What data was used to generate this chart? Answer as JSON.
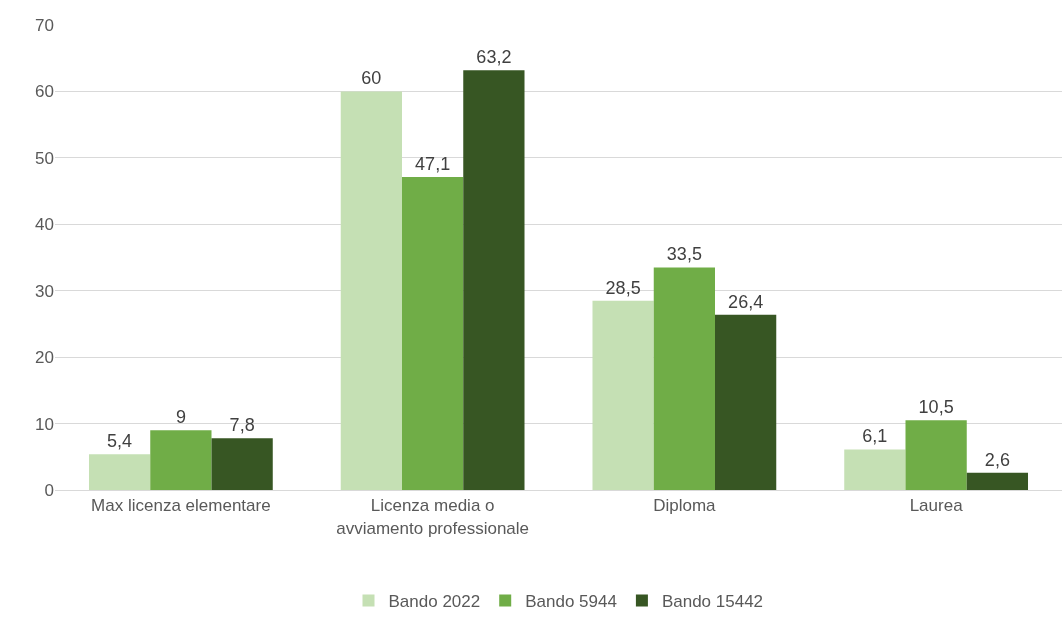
{
  "chart_data": {
    "type": "bar",
    "categories": [
      "Max licenza elementare",
      "Licenza media o\navviamento professionale",
      "Diploma",
      "Laurea"
    ],
    "series": [
      {
        "name": "Bando 2022",
        "color": "#c5e0b4",
        "values": [
          5.4,
          60,
          28.5,
          6.1
        ],
        "value_labels": [
          "5,4",
          "60",
          "28,5",
          "6,1"
        ]
      },
      {
        "name": "Bando 5944",
        "color": "#70ad47",
        "values": [
          9,
          47.1,
          33.5,
          10.5
        ],
        "value_labels": [
          "9",
          "47,1",
          "33,5",
          "10,5"
        ]
      },
      {
        "name": "Bando 15442",
        "color": "#375623",
        "values": [
          7.8,
          63.2,
          26.4,
          2.6
        ],
        "value_labels": [
          "7,8",
          "63,2",
          "26,4",
          "2,6"
        ]
      }
    ],
    "ylim": [
      0,
      70
    ],
    "yticks": [
      0,
      10,
      20,
      30,
      40,
      50,
      60,
      70
    ],
    "grid": "y",
    "legend": "bottom"
  }
}
